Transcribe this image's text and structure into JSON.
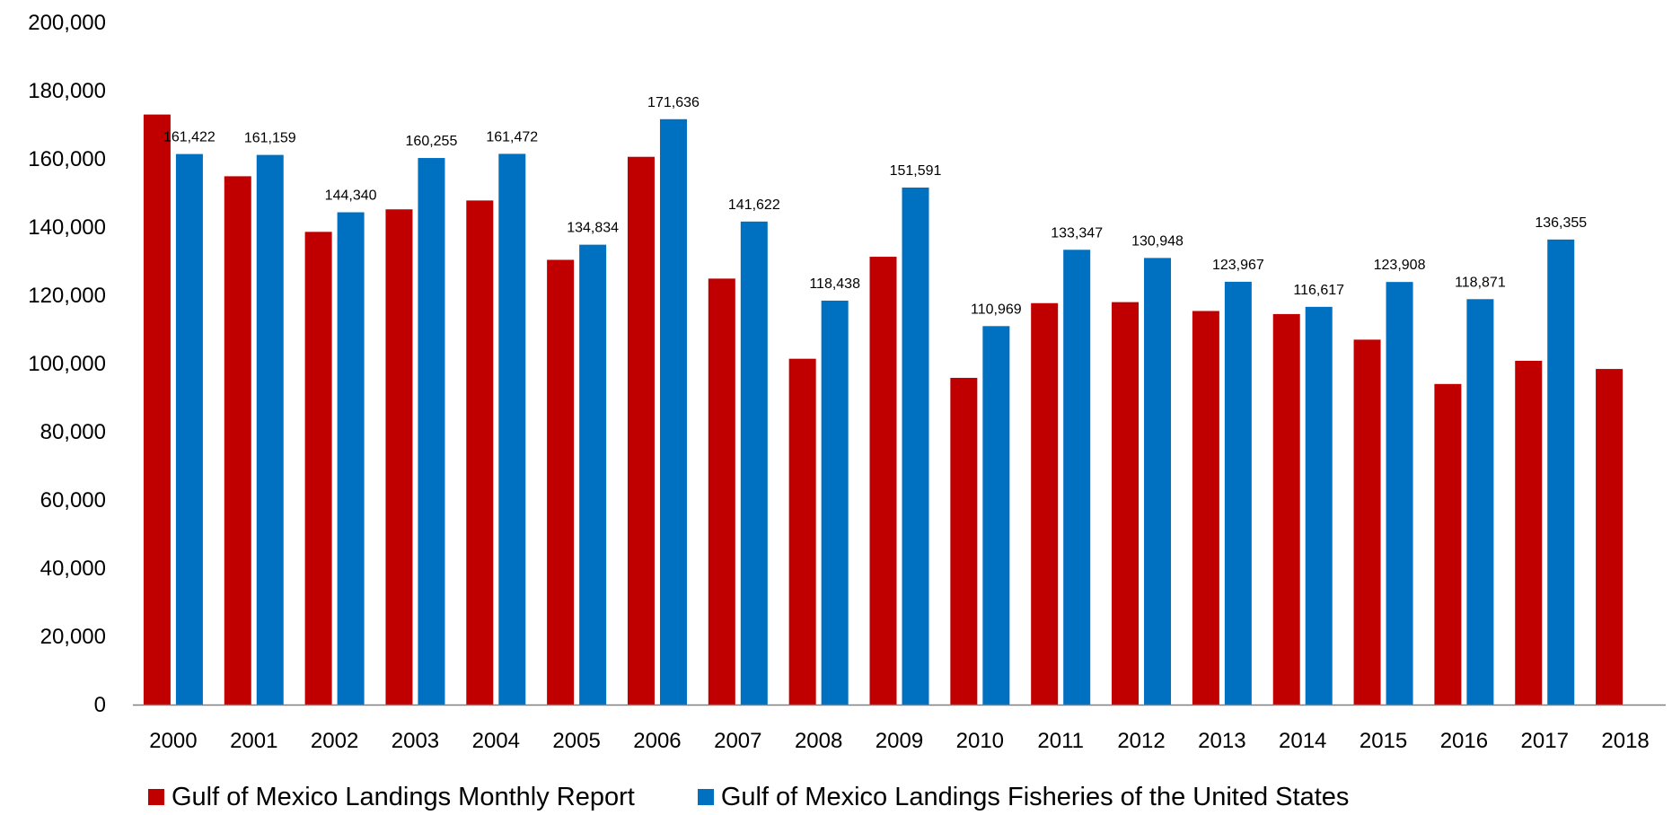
{
  "chart_data": {
    "type": "bar",
    "categories": [
      "2000",
      "2001",
      "2002",
      "2003",
      "2004",
      "2005",
      "2006",
      "2007",
      "2008",
      "2009",
      "2010",
      "2011",
      "2012",
      "2013",
      "2014",
      "2015",
      "2016",
      "2017",
      "2018"
    ],
    "series": [
      {
        "name": "Gulf of Mexico Landings Monthly Report",
        "color": "#c00000",
        "values": [
          173000,
          154900,
          138600,
          145200,
          147800,
          130400,
          160600,
          124900,
          101400,
          131300,
          95800,
          117700,
          118000,
          115400,
          114500,
          107000,
          94000,
          100800,
          98400
        ],
        "data_labels": [
          null,
          null,
          null,
          null,
          null,
          null,
          null,
          null,
          null,
          null,
          null,
          null,
          null,
          null,
          null,
          null,
          null,
          null,
          null
        ]
      },
      {
        "name": "Gulf of Mexico Landings Fisheries of the United States",
        "color": "#0070c0",
        "values": [
          161422,
          161159,
          144340,
          160255,
          161472,
          134834,
          171636,
          141622,
          118438,
          151591,
          110969,
          133347,
          130948,
          123967,
          116617,
          123908,
          118871,
          136355,
          null
        ],
        "data_labels": [
          "161,422",
          "161,159",
          "144,340",
          "160,255",
          "161,472",
          "134,834",
          "171,636",
          "141,622",
          "118,438",
          "151,591",
          "110,969",
          "133,347",
          "130,948",
          "123,967",
          "116,617",
          "123,908",
          "118,871",
          "136,355",
          null
        ]
      }
    ],
    "y_ticks": [
      "0",
      "20,000",
      "40,000",
      "60,000",
      "80,000",
      "100,000",
      "120,000",
      "140,000",
      "160,000",
      "180,000",
      "200,000"
    ],
    "ylim": [
      0,
      200000
    ],
    "title": "",
    "xlabel": "",
    "ylabel": "",
    "grid": false,
    "legend_position": "bottom"
  }
}
